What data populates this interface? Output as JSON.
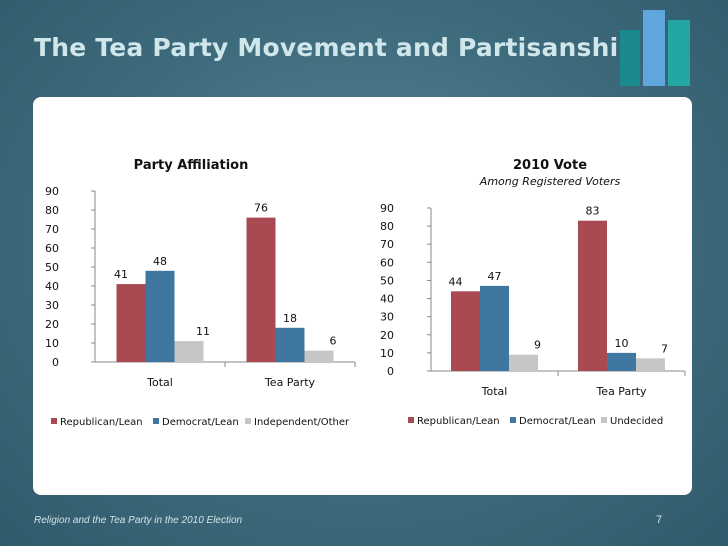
{
  "slide": {
    "title": "The Tea Party Movement and Partisanship",
    "footer_source": "Religion and the Tea Party in the 2010 Election",
    "page_number": "7"
  },
  "colors": {
    "republican": "#a94a53",
    "democrat": "#3f77a0",
    "third": "#c6c6c6",
    "logo_dark_teal": "#1a8a8f",
    "logo_light_blue": "#5fa6dc",
    "logo_teal": "#23a6a4"
  },
  "chart_data": [
    {
      "type": "bar",
      "title": "Party Affiliation",
      "subtitle": "",
      "categories": [
        "Total",
        "Tea Party"
      ],
      "series": [
        {
          "name": "Republican/Lean",
          "values": [
            41,
            76
          ]
        },
        {
          "name": "Democrat/Lean",
          "values": [
            48,
            18
          ]
        },
        {
          "name": "Independent/Other",
          "values": [
            11,
            6
          ]
        }
      ],
      "ylim": [
        0,
        90
      ],
      "yticks": [
        0,
        10,
        20,
        30,
        40,
        50,
        60,
        70,
        80,
        90
      ],
      "xlabel": "",
      "ylabel": "",
      "grid": false,
      "legend": "bottom"
    },
    {
      "type": "bar",
      "title": "2010 Vote",
      "subtitle": "Among Registered Voters",
      "categories": [
        "Total",
        "Tea Party"
      ],
      "series": [
        {
          "name": "Republican/Lean",
          "values": [
            44,
            83
          ]
        },
        {
          "name": "Democrat/Lean",
          "values": [
            47,
            10
          ]
        },
        {
          "name": "Undecided",
          "values": [
            9,
            7
          ]
        }
      ],
      "ylim": [
        0,
        90
      ],
      "yticks": [
        0,
        10,
        20,
        30,
        40,
        50,
        60,
        70,
        80,
        90
      ],
      "xlabel": "",
      "ylabel": "",
      "grid": false,
      "legend": "bottom"
    }
  ]
}
